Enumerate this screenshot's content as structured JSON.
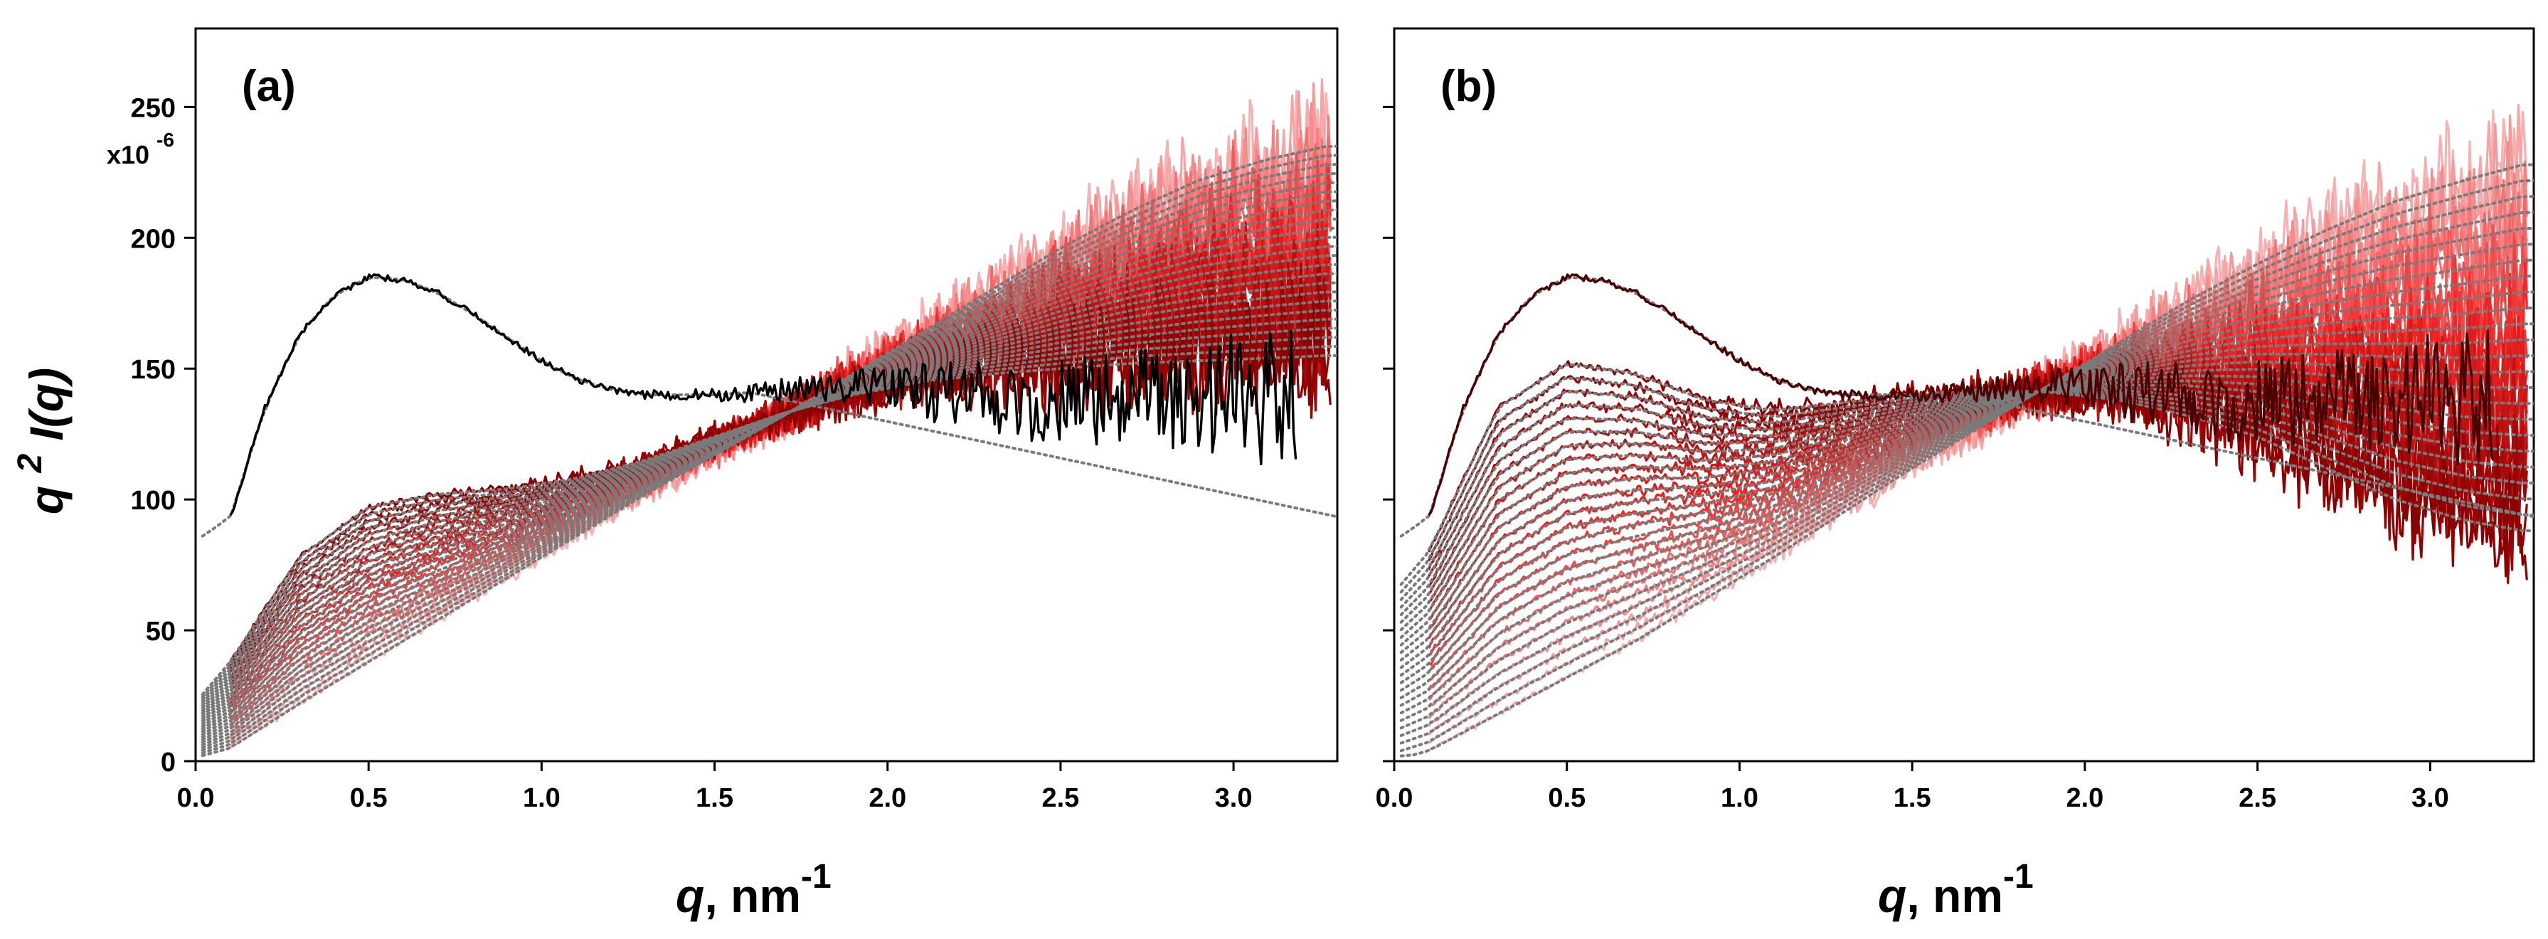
{
  "figure": {
    "scale_top": "250",
    "scale_exp_base": "x10",
    "scale_exp_power": "-6",
    "ylabel_q": "q",
    "ylabel_power": "2",
    "ylabel_rest": "I(q)",
    "xlabel_q": "q",
    "xlabel_unit": ", nm",
    "xlabel_power": "-1",
    "colors": {
      "reference": "#000000",
      "fit": "#7a7a7a",
      "red_pale": "#f6b2b2",
      "red_mid": "#ee2222",
      "red_dark": "#8a0000",
      "red_deepest": "#4a0000"
    }
  },
  "chart_data": [
    {
      "type": "line",
      "panel": "(a)",
      "xlabel": "q, nm^-1",
      "ylabel": "q^2 I(q)",
      "xlim": [
        0.0,
        3.3
      ],
      "ylim": [
        0,
        280
      ],
      "y_scale_note": "x10^-6",
      "x_ticks": [
        0.0,
        0.5,
        1.0,
        1.5,
        2.0,
        2.5,
        3.0
      ],
      "x_tick_labels": [
        "0.0",
        "0.5",
        "1.0",
        "1.5",
        "2.0",
        "2.5",
        "3.0"
      ],
      "y_ticks": [
        0,
        50,
        100,
        150,
        200,
        250
      ],
      "y_tick_labels": [
        "0",
        "50",
        "100",
        "150",
        "200",
        "250"
      ],
      "reference_curve": {
        "name": "black reference",
        "x": [
          0.1,
          0.2,
          0.3,
          0.4,
          0.5,
          0.6,
          0.7,
          0.8,
          0.9,
          1.0,
          1.1,
          1.2,
          1.3,
          1.4,
          1.5,
          1.6,
          1.7,
          1.8,
          1.9,
          2.0,
          2.2,
          2.4,
          2.6,
          2.8,
          3.0,
          3.2
        ],
        "y": [
          93,
          135,
          163,
          178,
          185,
          184,
          179,
          171,
          162,
          153,
          146,
          142,
          140,
          140,
          140,
          141,
          142,
          143,
          143,
          143,
          140,
          138,
          137,
          137,
          138,
          140
        ]
      },
      "series_family": {
        "count": 24,
        "description": "red data curves from pale pink (first) to dark red (last), each with a grey dotted fit",
        "first": {
          "x": [
            0.1,
            0.3,
            0.5,
            0.7,
            0.9,
            1.1,
            1.3,
            1.5,
            1.7,
            1.9,
            2.1,
            2.3,
            2.5,
            2.7,
            2.9,
            3.1,
            3.27
          ],
          "y": [
            5,
            22,
            38,
            54,
            70,
            86,
            102,
            117,
            132,
            148,
            164,
            180,
            196,
            210,
            222,
            230,
            235
          ]
        },
        "last": {
          "x": [
            0.1,
            0.3,
            0.5,
            0.7,
            0.9,
            1.1,
            1.3,
            1.5,
            1.7,
            1.9,
            2.1,
            2.3,
            2.5,
            2.7,
            2.9,
            3.1,
            3.27
          ],
          "y": [
            38,
            78,
            97,
            102,
            104,
            108,
            115,
            124,
            133,
            140,
            145,
            148,
            150,
            152,
            153,
            154,
            155
          ]
        }
      }
    },
    {
      "type": "line",
      "panel": "(b)",
      "xlabel": "q, nm^-1",
      "ylabel": "q^2 I(q)",
      "xlim": [
        0.0,
        3.3
      ],
      "ylim": [
        0,
        280
      ],
      "y_scale_note": "x10^-6",
      "x_ticks": [
        0.0,
        0.5,
        1.0,
        1.5,
        2.0,
        2.5,
        3.0
      ],
      "x_tick_labels": [
        "0.0",
        "0.5",
        "1.0",
        "1.5",
        "2.0",
        "2.5",
        "3.0"
      ],
      "y_ticks": [
        0,
        50,
        100,
        150,
        200,
        250
      ],
      "y_tick_labels": [
        "",
        "",
        "",
        "",
        "",
        ""
      ],
      "reference_curve": {
        "name": "dark red reference",
        "x": [
          0.1,
          0.2,
          0.3,
          0.4,
          0.5,
          0.6,
          0.7,
          0.8,
          0.9,
          1.0,
          1.1,
          1.2,
          1.3,
          1.4,
          1.5,
          1.6,
          1.7,
          1.8,
          1.9,
          2.0,
          2.2,
          2.4,
          2.6,
          2.8,
          3.0,
          3.2
        ],
        "y": [
          93,
          135,
          163,
          178,
          185,
          184,
          179,
          171,
          162,
          153,
          146,
          142,
          140,
          140,
          140,
          141,
          142,
          143,
          143,
          143,
          140,
          138,
          137,
          137,
          138,
          140
        ]
      },
      "series_family": {
        "count": 24,
        "description": "red data curves peaking near q=0.55 and crossing near q=1.6-1.8; pale pink (first) to dark red (last), each with a grey dotted fit",
        "first": {
          "x": [
            0.1,
            0.3,
            0.5,
            0.7,
            0.9,
            1.1,
            1.3,
            1.5,
            1.7,
            1.9,
            2.1,
            2.3,
            2.5,
            2.7,
            2.9,
            3.1,
            3.27
          ],
          "y": [
            4,
            18,
            32,
            46,
            62,
            78,
            95,
            112,
            128,
            144,
            160,
            176,
            190,
            203,
            214,
            222,
            228
          ]
        },
        "last": {
          "x": [
            0.1,
            0.3,
            0.5,
            0.7,
            0.9,
            1.1,
            1.3,
            1.5,
            1.7,
            1.9,
            2.1,
            2.3,
            2.5,
            2.7,
            2.9,
            3.1,
            3.27
          ],
          "y": [
            80,
            135,
            152,
            148,
            138,
            134,
            137,
            140,
            142,
            141,
            138,
            132,
            124,
            112,
            100,
            92,
            88
          ]
        }
      }
    }
  ]
}
